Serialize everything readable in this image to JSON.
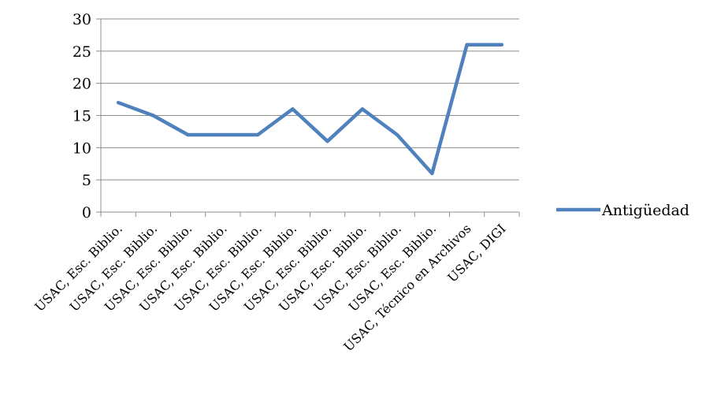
{
  "chart_data": {
    "type": "line",
    "categories": [
      "USAC, Esc. Biblio.",
      "USAC, Esc. Biblio.",
      "USAC, Esc. Biblio.",
      "USAC, Esc. Biblio.",
      "USAC, Esc. Biblio.",
      "USAC, Esc. Biblio.",
      "USAC, Esc. Biblio.",
      "USAC, Esc. Biblio.",
      "USAC, Esc. Biblio.",
      "USAC, Esc. Biblio.",
      "USAC, Técnico en Archivos",
      "USAC, DIGI"
    ],
    "series": [
      {
        "name": "Antigüedad",
        "values": [
          17,
          15,
          12,
          12,
          12,
          16,
          11,
          16,
          12,
          6,
          26,
          26
        ],
        "color": "#4f81bd"
      }
    ],
    "ylim": [
      0,
      30
    ],
    "yticks": [
      0,
      5,
      10,
      15,
      20,
      25,
      30
    ],
    "grid": true,
    "legend": "right",
    "title": "",
    "xlabel": "",
    "ylabel": ""
  }
}
